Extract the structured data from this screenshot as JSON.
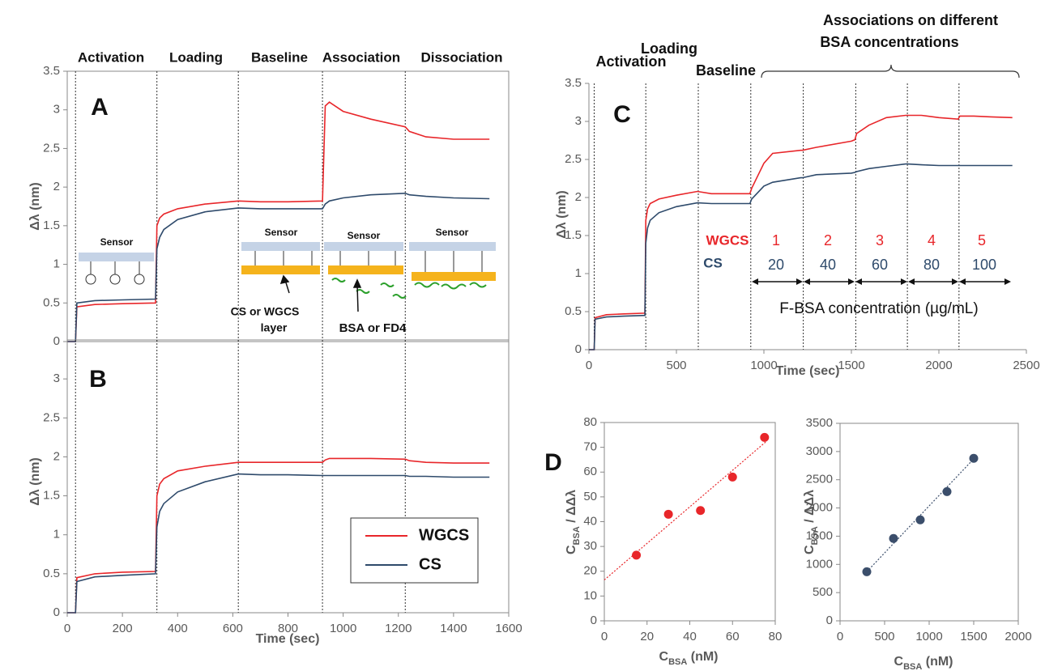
{
  "chart_data": [
    {
      "type": "line",
      "panel": "A",
      "ylabel": [
        {
          "text": "Δλ (nm)"
        }
      ],
      "xlim": [
        0,
        1600
      ],
      "ylim": [
        0,
        3.5
      ],
      "yticks": [
        0,
        0.5,
        1,
        1.5,
        2,
        2.5,
        3,
        3.5
      ],
      "frame": true,
      "vlines": [
        30,
        325,
        620,
        925,
        1225
      ],
      "x": [
        0,
        30,
        35,
        100,
        200,
        320,
        325,
        335,
        350,
        400,
        500,
        620,
        700,
        800,
        925,
        935,
        950,
        1000,
        1100,
        1225,
        1240,
        1300,
        1400,
        1530
      ],
      "series": [
        {
          "color": "#e8262a",
          "values": [
            0,
            0,
            0.45,
            0.48,
            0.49,
            0.5,
            1.5,
            1.6,
            1.65,
            1.72,
            1.78,
            1.82,
            1.81,
            1.81,
            1.82,
            3.05,
            3.1,
            2.98,
            2.88,
            2.78,
            2.72,
            2.65,
            2.62,
            2.62
          ]
        },
        {
          "color": "#2e4a6b",
          "values": [
            0,
            0,
            0.5,
            0.53,
            0.54,
            0.55,
            1.2,
            1.35,
            1.45,
            1.58,
            1.68,
            1.73,
            1.72,
            1.72,
            1.72,
            1.78,
            1.82,
            1.86,
            1.9,
            1.92,
            1.9,
            1.88,
            1.86,
            1.85
          ]
        }
      ],
      "annotations": [
        "Activation",
        "Loading",
        "Baseline",
        "Association",
        "Dissociation",
        "Sensor",
        "Sensor",
        "Sensor",
        "Sensor",
        "CS or WGCS",
        "layer",
        "BSA or FD4"
      ]
    },
    {
      "type": "line",
      "panel": "B",
      "xlabel": [
        {
          "text": "Time (sec)"
        }
      ],
      "ylabel": [
        {
          "text": "Δλ (nm)"
        }
      ],
      "xlim": [
        0,
        1600
      ],
      "xticks": [
        0,
        200,
        400,
        600,
        800,
        1000,
        1200,
        1400,
        1600
      ],
      "ylim": [
        0,
        3.5
      ],
      "yticks": [
        0,
        0.5,
        1,
        1.5,
        2,
        2.5,
        3
      ],
      "frame": true,
      "legend": "lower right",
      "vlines": [
        30,
        325,
        620,
        925,
        1225
      ],
      "x": [
        0,
        30,
        35,
        100,
        200,
        320,
        325,
        335,
        350,
        400,
        500,
        620,
        700,
        800,
        925,
        935,
        950,
        1000,
        1100,
        1225,
        1240,
        1300,
        1400,
        1530
      ],
      "series": [
        {
          "name": "WGCS",
          "color": "#e8262a",
          "values": [
            0,
            0,
            0.45,
            0.5,
            0.52,
            0.53,
            1.5,
            1.65,
            1.72,
            1.82,
            1.88,
            1.93,
            1.93,
            1.93,
            1.93,
            1.96,
            1.98,
            1.98,
            1.98,
            1.97,
            1.95,
            1.93,
            1.92,
            1.92
          ]
        },
        {
          "name": "CS",
          "color": "#2e4a6b",
          "values": [
            0,
            0,
            0.4,
            0.46,
            0.48,
            0.5,
            1.1,
            1.3,
            1.4,
            1.55,
            1.68,
            1.78,
            1.77,
            1.77,
            1.76,
            1.76,
            1.76,
            1.76,
            1.76,
            1.76,
            1.75,
            1.75,
            1.74,
            1.74
          ]
        }
      ]
    },
    {
      "type": "line",
      "panel": "C",
      "xlabel": [
        {
          "text": "Time (sec)"
        }
      ],
      "ylabel": [
        {
          "text": "Δλ (nm)"
        }
      ],
      "xlim": [
        0,
        2500
      ],
      "xticks": [
        0,
        500,
        1000,
        1500,
        2000,
        2500
      ],
      "ylim": [
        0,
        3.5
      ],
      "yticks": [
        0,
        0.5,
        1,
        1.5,
        2,
        2.5,
        3,
        3.5
      ],
      "frame": false,
      "vlines": [
        30,
        325,
        625,
        925,
        1225,
        1525,
        1820,
        2115
      ],
      "x": [
        0,
        30,
        35,
        100,
        200,
        320,
        325,
        335,
        350,
        400,
        500,
        620,
        700,
        800,
        920,
        930,
        1000,
        1050,
        1210,
        1220,
        1300,
        1500,
        1520,
        1530,
        1600,
        1700,
        1810,
        1820,
        1900,
        2000,
        2110,
        2120,
        2200,
        2300,
        2420
      ],
      "series": [
        {
          "color": "#e8262a",
          "values": [
            0,
            0,
            0.42,
            0.46,
            0.47,
            0.48,
            1.7,
            1.85,
            1.92,
            1.98,
            2.03,
            2.08,
            2.05,
            2.05,
            2.05,
            2.12,
            2.45,
            2.58,
            2.62,
            2.62,
            2.66,
            2.74,
            2.76,
            2.84,
            2.95,
            3.05,
            3.08,
            3.08,
            3.08,
            3.05,
            3.03,
            3.07,
            3.07,
            3.06,
            3.05
          ]
        },
        {
          "color": "#2e4a6b",
          "values": [
            0,
            0,
            0.4,
            0.43,
            0.44,
            0.45,
            1.4,
            1.6,
            1.7,
            1.8,
            1.88,
            1.93,
            1.92,
            1.92,
            1.92,
            1.98,
            2.15,
            2.2,
            2.26,
            2.26,
            2.3,
            2.32,
            2.33,
            2.34,
            2.38,
            2.41,
            2.44,
            2.44,
            2.43,
            2.42,
            2.42,
            2.42,
            2.42,
            2.42,
            2.42
          ]
        }
      ],
      "annotations": [
        "Activation",
        "Loading",
        "Baseline",
        "Associations on different",
        "BSA concentrations",
        "WGCS",
        "CS",
        "F-BSA concentration (µg/mL)"
      ],
      "segment_numbers": [
        1,
        2,
        3,
        4,
        5
      ],
      "concentrations": [
        20,
        40,
        60,
        80,
        100
      ]
    },
    {
      "type": "scatter",
      "panel": "D",
      "xlabel": [
        {
          "text": "C"
        },
        {
          "text": "BSA",
          "sub": true
        },
        {
          "text": " (nM)"
        }
      ],
      "ylabel": [
        {
          "text": "C"
        },
        {
          "text": "BSA",
          "sub": true
        },
        {
          "text": " / ΔΔλ"
        }
      ],
      "xlim": [
        0,
        80
      ],
      "xticks": [
        0,
        20,
        40,
        60,
        80
      ],
      "ylim": [
        0,
        80
      ],
      "yticks": [
        0,
        10,
        20,
        30,
        40,
        50,
        60,
        70,
        80
      ],
      "frame": true,
      "x": [
        15,
        30,
        45,
        60,
        75
      ],
      "series": [
        {
          "color": "#e8262a",
          "values": [
            26.5,
            43,
            44.5,
            58,
            74
          ]
        }
      ],
      "trendline": {
        "color": "#e8262a",
        "x": [
          0,
          76
        ],
        "values": [
          16.5,
          72.5
        ]
      }
    },
    {
      "type": "scatter",
      "xlabel": [
        {
          "text": "C"
        },
        {
          "text": "BSA",
          "sub": true
        },
        {
          "text": " (nM)"
        }
      ],
      "ylabel": [
        {
          "text": "C"
        },
        {
          "text": "BSA",
          "sub": true
        },
        {
          "text": " / ΔΔλ"
        }
      ],
      "xlim": [
        0,
        2000
      ],
      "xticks": [
        0,
        500,
        1000,
        1500,
        2000
      ],
      "ylim": [
        0,
        3500
      ],
      "yticks": [
        0,
        500,
        1000,
        1500,
        2000,
        2500,
        3000,
        3500
      ],
      "frame": true,
      "x": [
        300,
        600,
        900,
        1200,
        1500
      ],
      "series": [
        {
          "color": "#3b4e6b",
          "values": [
            870,
            1460,
            1790,
            2290,
            2880
          ]
        }
      ],
      "trendline": {
        "color": "#3b4e6b",
        "x": [
          300,
          1500
        ],
        "values": [
          870,
          2870
        ]
      }
    }
  ]
}
